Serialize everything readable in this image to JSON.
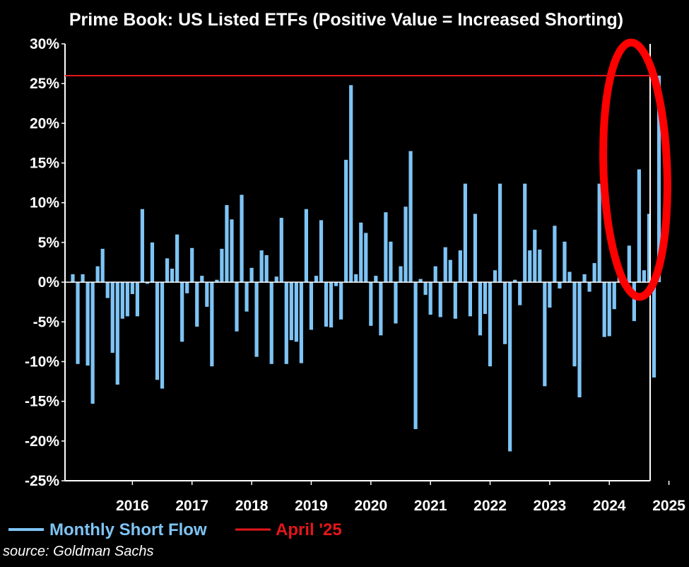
{
  "chart_data": {
    "type": "bar",
    "title": "Prime Book: US Listed ETFs (Positive Value = Increased Shorting)",
    "xlabel": "",
    "ylabel": "",
    "ylim": [
      -25,
      30
    ],
    "yticks": [
      "30%",
      "25%",
      "20%",
      "15%",
      "10%",
      "5%",
      "0%",
      "-5%",
      "-10%",
      "-15%",
      "-20%",
      "-25%"
    ],
    "xticks": [
      "2016",
      "2017",
      "2018",
      "2019",
      "2020",
      "2021",
      "2022",
      "2023",
      "2024",
      "2025"
    ],
    "x_start": "2015-07",
    "series": [
      {
        "name": "Monthly Short Flow",
        "color": "#7ec4f5",
        "values": [
          1.0,
          -10.3,
          1.0,
          -10.5,
          -15.3,
          2.0,
          4.2,
          -2.0,
          -8.9,
          -12.9,
          -4.6,
          -4.3,
          -1.5,
          -4.3,
          9.2,
          -0.2,
          5.0,
          -12.3,
          -13.4,
          3.0,
          1.7,
          6.0,
          -7.5,
          -1.4,
          4.3,
          -5.6,
          0.8,
          -3.1,
          -10.6,
          0.3,
          4.2,
          9.7,
          7.9,
          -6.2,
          11.0,
          -3.7,
          1.8,
          -9.4,
          4.0,
          3.4,
          -10.3,
          0.7,
          8.1,
          -10.3,
          -7.3,
          -7.5,
          -10.2,
          9.2,
          -6.0,
          0.8,
          7.8,
          -5.6,
          -5.7,
          -0.5,
          -4.7,
          15.4,
          24.8,
          1.0,
          7.5,
          6.2,
          -5.5,
          0.8,
          -6.7,
          8.8,
          5.1,
          -5.2,
          2.0,
          9.5,
          16.5,
          -18.5,
          0.4,
          -1.6,
          -4.1,
          2.0,
          -4.4,
          4.4,
          2.8,
          -4.6,
          4.0,
          12.4,
          -4.3,
          8.6,
          -6.7,
          -4.0,
          -10.6,
          1.5,
          12.4,
          -7.8,
          -21.3,
          0.3,
          -2.9,
          12.4,
          4.0,
          6.6,
          4.1,
          -13.1,
          -3.2,
          7.1,
          -0.8,
          5.1,
          1.3,
          -10.6,
          -14.5,
          1.0,
          -1.2,
          2.4,
          12.4,
          -6.9,
          -6.8,
          -3.4,
          0.6,
          0.3,
          4.6,
          -4.9,
          14.2,
          1.5,
          8.6,
          -12.0,
          26.0
        ]
      }
    ],
    "reference_lines": [
      {
        "name": "April '25",
        "value": 26,
        "color": "#e4161a"
      }
    ],
    "annotation": {
      "type": "ellipse",
      "color": "#ff0000",
      "target": "2025"
    },
    "legend": {
      "placement": "bottom-left",
      "items": [
        {
          "label": "Monthly Short Flow",
          "color": "#7ec4f5"
        },
        {
          "label": "April '25",
          "color": "#e4161a"
        }
      ]
    },
    "grid": false
  },
  "source": "source: Goldman Sachs"
}
